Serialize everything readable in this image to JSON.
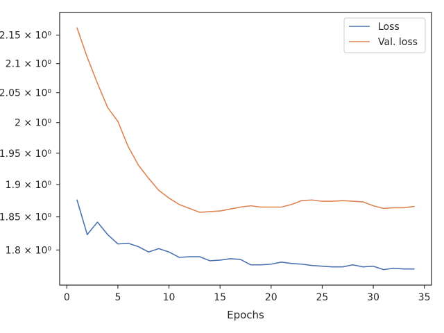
{
  "chart_data": {
    "type": "line",
    "title": "",
    "xlabel": "Epochs",
    "ylabel": "",
    "xlim": [
      -0.7,
      35.7
    ],
    "ylim": [
      1.7484,
      2.1907
    ],
    "y_scale": "log",
    "grid": false,
    "legend_position": "top-right",
    "x_ticks": [
      0,
      5,
      10,
      15,
      20,
      25,
      30,
      35
    ],
    "x_tick_labels": [
      "0",
      "5",
      "10",
      "15",
      "20",
      "25",
      "30",
      "35"
    ],
    "y_ticks": [
      1.8,
      1.85,
      1.9,
      1.95,
      2.0,
      2.05,
      2.1,
      2.15
    ],
    "y_tick_labels": [
      "1.8 × 10⁰",
      "1.85 × 10⁰",
      "1.9 × 10⁰",
      "1.95 × 10⁰",
      "2 × 10⁰",
      "2.05 × 10⁰",
      "2.1 × 10⁰",
      "2.15 × 10⁰"
    ],
    "x": [
      1,
      2,
      3,
      4,
      5,
      6,
      7,
      8,
      9,
      10,
      11,
      12,
      13,
      14,
      15,
      16,
      17,
      18,
      19,
      20,
      21,
      22,
      23,
      24,
      25,
      26,
      27,
      28,
      29,
      30,
      31,
      32,
      33,
      34
    ],
    "series": [
      {
        "name": "Loss",
        "color": "#4c72b0",
        "values": [
          1.876,
          1.823,
          1.842,
          1.823,
          1.809,
          1.81,
          1.805,
          1.797,
          1.802,
          1.797,
          1.789,
          1.79,
          1.79,
          1.784,
          1.785,
          1.787,
          1.786,
          1.778,
          1.778,
          1.779,
          1.782,
          1.78,
          1.779,
          1.777,
          1.776,
          1.775,
          1.775,
          1.778,
          1.775,
          1.776,
          1.771,
          1.773,
          1.772,
          1.772
        ]
      },
      {
        "name": "Val. loss",
        "color": "#dd8452",
        "values": [
          2.163,
          2.111,
          2.066,
          2.025,
          2.002,
          1.961,
          1.931,
          1.91,
          1.891,
          1.879,
          1.869,
          1.863,
          1.857,
          1.858,
          1.859,
          1.862,
          1.865,
          1.867,
          1.865,
          1.865,
          1.865,
          1.869,
          1.875,
          1.876,
          1.874,
          1.874,
          1.875,
          1.874,
          1.873,
          1.867,
          1.863,
          1.864,
          1.864,
          1.866
        ]
      }
    ]
  }
}
